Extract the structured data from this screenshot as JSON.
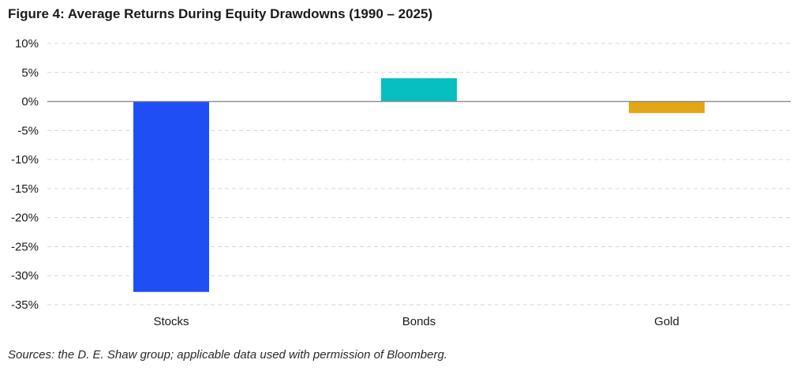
{
  "title": "Figure 4: Average Returns During Equity Drawdowns (1990 – 2025)",
  "source": "Sources: the D. E. Shaw group; applicable data used with permission of Bloomberg.",
  "chart_data": {
    "type": "bar",
    "title": "Figure 4: Average Returns During Equity Drawdowns (1990 – 2025)",
    "xlabel": "",
    "ylabel": "",
    "categories": [
      "Stocks",
      "Bonds",
      "Gold"
    ],
    "values": [
      -32.8,
      4.0,
      -2.0
    ],
    "colors": [
      "#1f4ef5",
      "#05bfc0",
      "#e3a616"
    ],
    "ylim": [
      -35,
      10
    ],
    "yticks": [
      10,
      5,
      0,
      -5,
      -10,
      -15,
      -20,
      -25,
      -30,
      -35
    ],
    "ytick_labels": [
      "10%",
      "5%",
      "0%",
      "-5%",
      "-10%",
      "-15%",
      "-20%",
      "-25%",
      "-30%",
      "-35%"
    ],
    "grid": "horizontal dashed",
    "legend": "none"
  }
}
